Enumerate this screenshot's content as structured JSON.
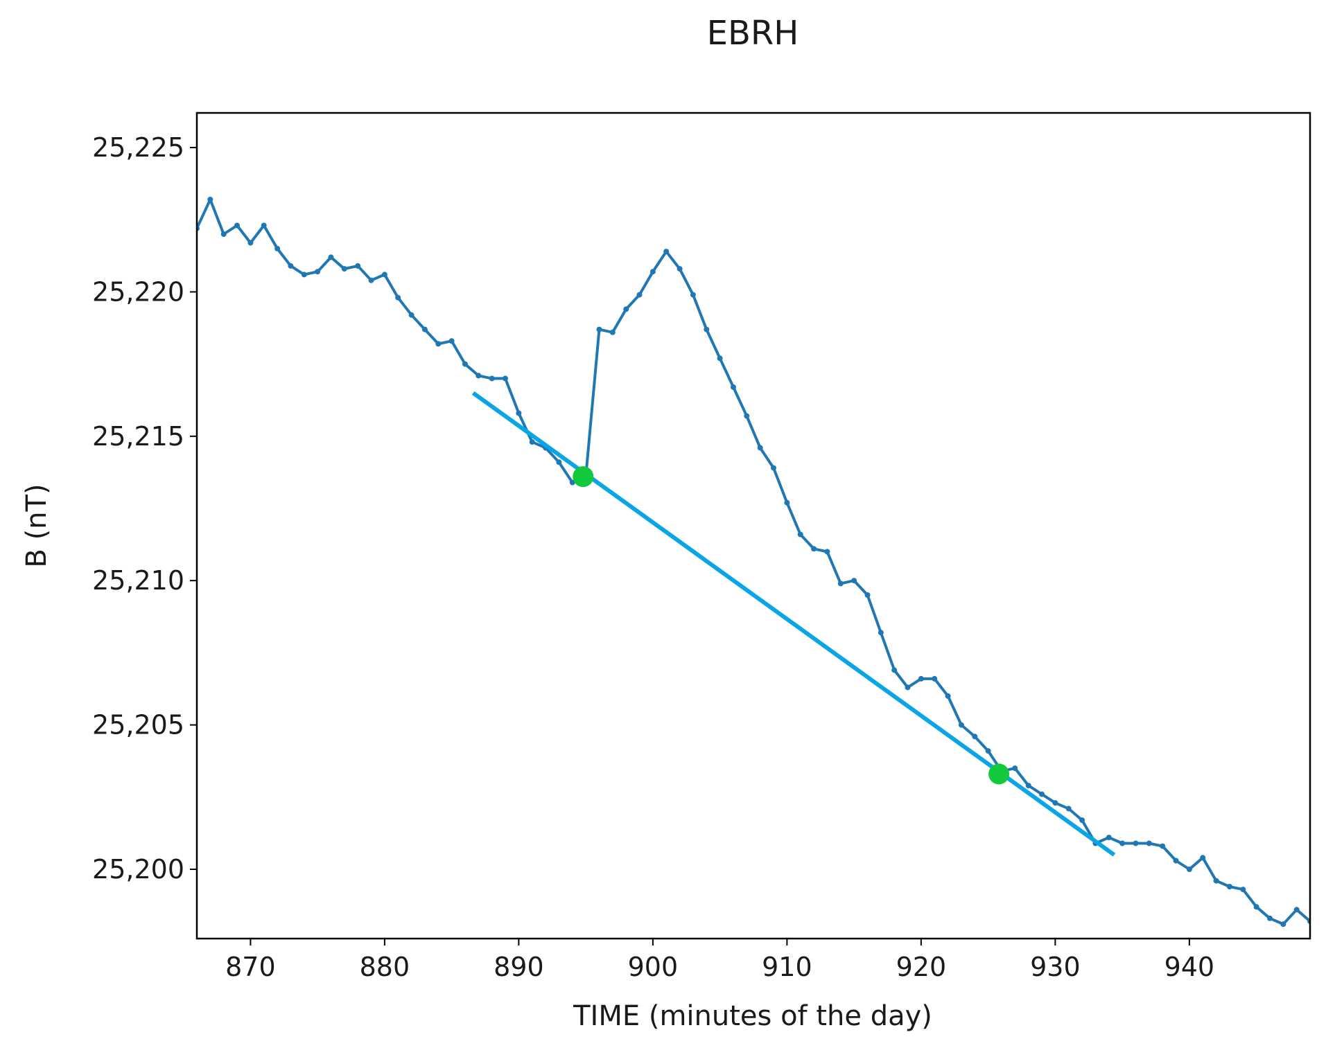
{
  "chart_data": {
    "type": "line",
    "title": "EBRH",
    "xlabel": "TIME (minutes of the day)",
    "ylabel": "B (nT)",
    "xlim": [
      866,
      949
    ],
    "ylim": [
      25197.6,
      25226.2
    ],
    "xticks": [
      870,
      880,
      890,
      900,
      910,
      920,
      930,
      940
    ],
    "yticks": [
      25200,
      25205,
      25210,
      25215,
      25220,
      25225
    ],
    "ytick_labels": [
      "25,200",
      "25,205",
      "25,210",
      "25,215",
      "25,220",
      "25,225"
    ],
    "grid": false,
    "legend": "none",
    "series": [
      {
        "color": "#1f77b4",
        "marker": "dot",
        "x": [
          866,
          867,
          868,
          869,
          870,
          871,
          872,
          873,
          874,
          875,
          876,
          877,
          878,
          879,
          880,
          881,
          882,
          883,
          884,
          885,
          886,
          887,
          888,
          889,
          890,
          891,
          892,
          893,
          894,
          895,
          896,
          897,
          898,
          899,
          900,
          901,
          902,
          903,
          904,
          905,
          906,
          907,
          908,
          909,
          910,
          911,
          912,
          913,
          914,
          915,
          916,
          917,
          918,
          919,
          920,
          921,
          922,
          923,
          924,
          925,
          926,
          927,
          928,
          929,
          930,
          931,
          932,
          933,
          934,
          935,
          936,
          937,
          938,
          939,
          940,
          941,
          942,
          943,
          944,
          945,
          946,
          947,
          948,
          949
        ],
        "y": [
          25222.2,
          25223.2,
          25222.0,
          25222.3,
          25221.7,
          25222.3,
          25221.5,
          25220.9,
          25220.6,
          25220.7,
          25221.2,
          25220.8,
          25220.9,
          25220.4,
          25220.6,
          25219.8,
          25219.2,
          25218.7,
          25218.2,
          25218.3,
          25217.5,
          25217.1,
          25217.0,
          25217.0,
          25215.8,
          25214.8,
          25214.6,
          25214.1,
          25213.4,
          25213.6,
          25218.7,
          25218.6,
          25219.4,
          25219.9,
          25220.7,
          25221.4,
          25220.8,
          25219.9,
          25218.7,
          25217.7,
          25216.7,
          25215.7,
          25214.6,
          25213.9,
          25212.7,
          25211.6,
          25211.1,
          25211.0,
          25209.9,
          25210.0,
          25209.5,
          25208.2,
          25206.9,
          25206.3,
          25206.6,
          25206.6,
          25206.0,
          25205.0,
          25204.6,
          25204.1,
          25203.4,
          25203.5,
          25202.9,
          25202.6,
          25202.3,
          25202.1,
          25201.7,
          25200.9,
          25201.1,
          25200.9,
          25200.9,
          25200.9,
          25200.8,
          25200.3,
          25200.0,
          25200.4,
          25199.6,
          25199.4,
          25199.3,
          25198.7,
          25198.3,
          25198.1,
          25198.6,
          25198.2
        ]
      },
      {
        "color": "#0aa5e5",
        "x": [
          886.6,
          934.4
        ],
        "y": [
          25216.5,
          25200.5
        ]
      }
    ],
    "annotations": [
      {
        "type": "point",
        "color": "#12c83c",
        "x": 894.8,
        "y": 25213.6
      },
      {
        "type": "point",
        "color": "#12c83c",
        "x": 925.8,
        "y": 25203.3
      }
    ]
  }
}
